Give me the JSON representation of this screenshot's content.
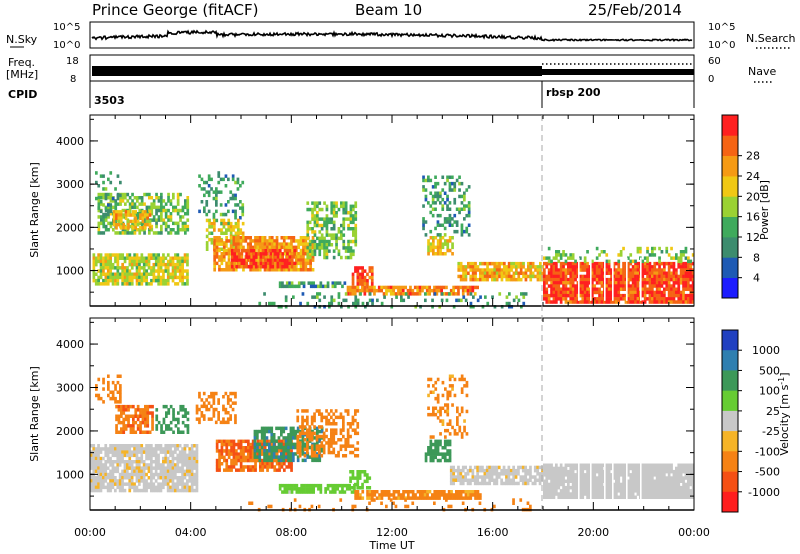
{
  "header": {
    "station": "Prince George (fitACF)",
    "beam": "Beam 10",
    "date": "25/Feb/2014"
  },
  "top_panels": {
    "nsky_label": "N.Sky",
    "nsearch_label": "N.Search",
    "noise_top_tick": "10^5",
    "noise_bottom_tick": "10^0",
    "freq_label_1": "Freq.",
    "freq_label_2": "[MHz]",
    "freq_top_tick": "18",
    "freq_bottom_tick": "8",
    "nave_label": "Nave",
    "nave_top_tick": "60",
    "nave_bottom_tick": "0",
    "cpid_label": "CPID",
    "cpid_1": "3503",
    "cpid_2": "rbsp  200"
  },
  "chart_data": [
    {
      "type": "heatmap",
      "name": "power",
      "ylabel": "Slant Range [km]",
      "yticks": [
        "1000",
        "2000",
        "3000",
        "4000"
      ],
      "ylim": [
        180,
        4600
      ],
      "xlim": [
        0,
        24
      ],
      "colorbar": {
        "label": "Power [dB]",
        "ticks": [
          "4",
          "8",
          "12",
          "16",
          "20",
          "24",
          "28"
        ],
        "colors": [
          "#1c1cff",
          "#1e5ab4",
          "#3c8c6e",
          "#3faa5c",
          "#9ad233",
          "#f0c814",
          "#f59a14",
          "#f56414",
          "#ff2020"
        ]
      },
      "blobs": [
        {
          "t0": 0.1,
          "t1": 3.9,
          "r0": 700,
          "r1": 1400,
          "v": 16,
          "d": 0.8
        },
        {
          "t0": 0.3,
          "t1": 3.9,
          "r0": 1900,
          "r1": 2800,
          "v": 12,
          "d": 0.6
        },
        {
          "t0": 0.9,
          "t1": 2.4,
          "r0": 2000,
          "r1": 2400,
          "v": 20,
          "d": 0.7
        },
        {
          "t0": 0.2,
          "t1": 1.2,
          "r0": 2300,
          "r1": 3300,
          "v": 8,
          "d": 0.25
        },
        {
          "t0": 4.3,
          "t1": 6.1,
          "r0": 2200,
          "r1": 3300,
          "v": 8,
          "d": 0.25
        },
        {
          "t0": 4.6,
          "t1": 6.1,
          "r0": 1500,
          "r1": 2200,
          "v": 16,
          "d": 0.6
        },
        {
          "t0": 4.9,
          "t1": 8.9,
          "r0": 1000,
          "r1": 1800,
          "v": 22,
          "d": 0.8
        },
        {
          "t0": 5.6,
          "t1": 8.1,
          "r0": 1100,
          "r1": 1500,
          "v": 28,
          "d": 0.8
        },
        {
          "t0": 8.6,
          "t1": 10.6,
          "r0": 1300,
          "r1": 2600,
          "v": 12,
          "d": 0.55
        },
        {
          "t0": 10.4,
          "t1": 11.2,
          "r0": 600,
          "r1": 1100,
          "v": 28,
          "d": 0.7
        },
        {
          "t0": 10.2,
          "t1": 15.4,
          "r0": 500,
          "r1": 650,
          "v": 24,
          "d": 0.75
        },
        {
          "t0": 7.5,
          "t1": 10.2,
          "r0": 650,
          "r1": 750,
          "v": 8,
          "d": 0.7
        },
        {
          "t0": 13.4,
          "t1": 14.4,
          "r0": 1400,
          "r1": 1800,
          "v": 18,
          "d": 0.7
        },
        {
          "t0": 13.2,
          "t1": 15.1,
          "r0": 1800,
          "r1": 3200,
          "v": 8,
          "d": 0.35
        },
        {
          "t0": 14.6,
          "t1": 18.0,
          "r0": 800,
          "r1": 1200,
          "v": 20,
          "d": 0.75
        },
        {
          "t0": 18.0,
          "t1": 24.0,
          "r0": 280,
          "r1": 1200,
          "v": 28,
          "d": 0.9
        },
        {
          "t0": 18.0,
          "t1": 24.0,
          "r0": 1200,
          "r1": 1550,
          "v": 12,
          "d": 0.35
        },
        {
          "t0": 6.5,
          "t1": 17.5,
          "r0": 180,
          "r1": 500,
          "v": 8,
          "d": 0.2
        }
      ]
    },
    {
      "type": "heatmap",
      "name": "velocity",
      "ylabel": "Slant Range [km]",
      "yticks": [
        "1000",
        "2000",
        "3000",
        "4000"
      ],
      "ylim": [
        180,
        4600
      ],
      "xlim": [
        0,
        24
      ],
      "xlabel": "Time UT",
      "xticks": [
        "00:00",
        "04:00",
        "08:00",
        "12:00",
        "16:00",
        "20:00",
        "00:00"
      ],
      "colorbar": {
        "label": "Velocity [m s^-1]",
        "ticks": [
          "1000",
          "500",
          "100",
          "25",
          "-25",
          "-100",
          "-500",
          "-1000"
        ],
        "colors": [
          "#2040c0",
          "#2f7fb0",
          "#3c9858",
          "#66cc33",
          "#c8c8c8",
          "#f5b428",
          "#f58214",
          "#f55014",
          "#ff1e1e"
        ]
      },
      "blobs": [
        {
          "t0": 0.0,
          "t1": 4.2,
          "r0": 650,
          "r1": 1700,
          "v": -10,
          "d": 0.85
        },
        {
          "t0": 1.0,
          "t1": 2.5,
          "r0": 2000,
          "r1": 2600,
          "v": -400,
          "d": 0.7
        },
        {
          "t0": 0.2,
          "t1": 1.2,
          "r0": 2700,
          "r1": 3300,
          "v": -200,
          "d": 0.35
        },
        {
          "t0": 2.6,
          "t1": 3.9,
          "r0": 2000,
          "r1": 2600,
          "v": 200,
          "d": 0.4
        },
        {
          "t0": 4.2,
          "t1": 5.8,
          "r0": 2200,
          "r1": 2900,
          "v": -200,
          "d": 0.35
        },
        {
          "t0": 5.0,
          "t1": 8.0,
          "r0": 1100,
          "r1": 1800,
          "v": -500,
          "d": 0.8
        },
        {
          "t0": 6.5,
          "t1": 9.2,
          "r0": 1300,
          "r1": 2100,
          "v": 400,
          "d": 0.7
        },
        {
          "t0": 8.2,
          "t1": 10.6,
          "r0": 1400,
          "r1": 2500,
          "v": -300,
          "d": 0.5
        },
        {
          "t0": 10.3,
          "t1": 11.1,
          "r0": 700,
          "r1": 1100,
          "v": 60,
          "d": 0.6
        },
        {
          "t0": 7.5,
          "t1": 10.5,
          "r0": 620,
          "r1": 780,
          "v": 60,
          "d": 0.8
        },
        {
          "t0": 10.5,
          "t1": 15.5,
          "r0": 480,
          "r1": 640,
          "v": -150,
          "d": 0.8
        },
        {
          "t0": 13.3,
          "t1": 14.3,
          "r0": 1300,
          "r1": 1800,
          "v": 300,
          "d": 0.7
        },
        {
          "t0": 13.4,
          "t1": 15.0,
          "r0": 1900,
          "r1": 3300,
          "v": -150,
          "d": 0.3
        },
        {
          "t0": 14.3,
          "t1": 18.0,
          "r0": 800,
          "r1": 1200,
          "v": -10,
          "d": 0.75
        },
        {
          "t0": 18.0,
          "t1": 24.0,
          "r0": 500,
          "r1": 1250,
          "v": 0,
          "d": 0.95
        },
        {
          "t0": 6.0,
          "t1": 17.5,
          "r0": 180,
          "r1": 450,
          "v": -200,
          "d": 0.15
        }
      ]
    }
  ]
}
